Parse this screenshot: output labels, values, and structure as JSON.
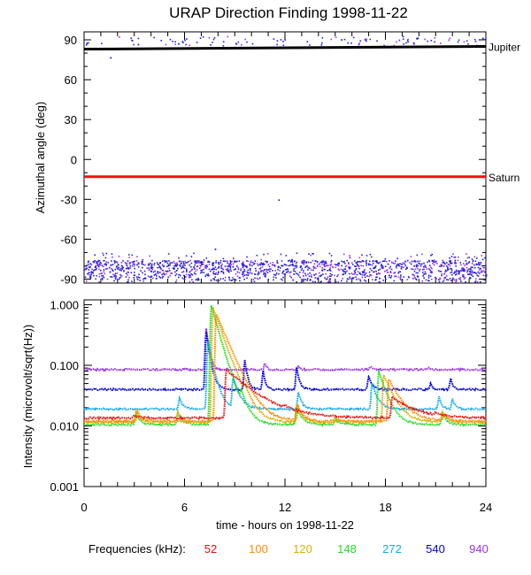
{
  "title": "URAP Direction Finding  1998-11-22",
  "colors": {
    "axes": "#000000",
    "f52": "#ee1111",
    "f100": "#ff8c00",
    "f120": "#d4b000",
    "f148": "#22dd22",
    "f272": "#11aaee",
    "f540": "#0000dd",
    "f940": "#9933ee",
    "scatter_blue": "#2222dd",
    "scatter_purple": "#9933ee"
  },
  "legend": {
    "label": "Frequencies (kHz):",
    "items": [
      {
        "text": "52",
        "color": "#ee1111"
      },
      {
        "text": "100",
        "color": "#ff8c00"
      },
      {
        "text": "120",
        "color": "#d4b000"
      },
      {
        "text": "148",
        "color": "#22dd22"
      },
      {
        "text": "272",
        "color": "#11aaee"
      },
      {
        "text": "540",
        "color": "#0000dd"
      },
      {
        "text": "940",
        "color": "#9933ee"
      }
    ]
  },
  "chart_data": [
    {
      "type": "scatter",
      "title": "URAP Direction Finding  1998-11-22",
      "ylabel": "Azimuthal angle (deg)",
      "xlim": [
        0,
        24
      ],
      "ylim": [
        -93,
        96
      ],
      "yticks": [
        -90,
        -60,
        -30,
        0,
        30,
        60,
        90
      ],
      "xticks": [
        0,
        6,
        12,
        18,
        24
      ],
      "reference_lines": [
        {
          "label": "Jupiter",
          "y": [
            83,
            85
          ],
          "color": "#000000"
        },
        {
          "label": "Saturn",
          "y": [
            -13,
            -13
          ],
          "color": "#ee1111"
        }
      ],
      "scatter_bands": [
        {
          "name": "upper-band",
          "ymin": 86,
          "ymax": 93,
          "density": "sparse",
          "color": "#2222dd"
        },
        {
          "name": "lower-band",
          "ymin": -92,
          "ymax": -70,
          "density": "dense",
          "color": "#2222dd"
        }
      ],
      "outliers": [
        [
          1.55,
          77
        ],
        [
          11.6,
          -30
        ],
        [
          7.8,
          -67
        ],
        [
          3.2,
          87
        ]
      ]
    },
    {
      "type": "line",
      "xlabel": "time - hours on 1998-11-22",
      "ylabel": "Intensity (microvolt/sqrt(Hz))",
      "xlim": [
        0,
        24
      ],
      "ylim": [
        0.001,
        1.2
      ],
      "yscale": "log",
      "yticks": [
        0.001,
        0.01,
        0.1,
        1.0
      ],
      "ytick_labels": [
        "0.001",
        "0.010",
        "0.100",
        "1.000"
      ],
      "xticks": [
        0,
        6,
        12,
        18,
        24
      ],
      "xtick_labels": [
        "0",
        "6",
        "12",
        "18",
        "24"
      ],
      "series": [
        {
          "name": "940",
          "color": "#9933ee",
          "base": 0.085,
          "peaks": [
            [
              7.3,
              0.4,
              0.15
            ],
            [
              10.8,
              0.11,
              0.1
            ],
            [
              12.8,
              0.095,
              0.1
            ],
            [
              17.1,
              0.095,
              0.15
            ],
            [
              20.6,
              0.09,
              0.1
            ]
          ]
        },
        {
          "name": "540",
          "color": "#0000dd",
          "base": 0.04,
          "peaks": [
            [
              7.3,
              0.35,
              0.2
            ],
            [
              9.6,
              0.12,
              0.15
            ],
            [
              10.7,
              0.08,
              0.12
            ],
            [
              12.7,
              0.09,
              0.15
            ],
            [
              17.0,
              0.065,
              0.2
            ],
            [
              20.7,
              0.05,
              0.1
            ],
            [
              21.9,
              0.06,
              0.12
            ]
          ]
        },
        {
          "name": "272",
          "color": "#11aaee",
          "base": 0.019,
          "peaks": [
            [
              5.7,
              0.028,
              0.2
            ],
            [
              7.4,
              0.25,
              0.3
            ],
            [
              8.9,
              0.06,
              0.35
            ],
            [
              12.8,
              0.035,
              0.2
            ],
            [
              17.2,
              0.05,
              0.3
            ],
            [
              21.2,
              0.03,
              0.15
            ],
            [
              22.0,
              0.028,
              0.15
            ]
          ]
        },
        {
          "name": "148",
          "color": "#22dd22",
          "base": 0.0105,
          "peaks": [
            [
              3.1,
              0.016,
              0.25
            ],
            [
              5.6,
              0.016,
              0.25
            ],
            [
              7.6,
              0.95,
              0.45
            ],
            [
              9.4,
              0.022,
              0.3
            ],
            [
              12.7,
              0.02,
              0.3
            ],
            [
              15.0,
              0.013,
              0.3
            ],
            [
              17.6,
              0.08,
              0.45
            ],
            [
              21.4,
              0.016,
              0.25
            ]
          ]
        },
        {
          "name": "120",
          "color": "#d4b000",
          "base": 0.0115,
          "peaks": [
            [
              3.1,
              0.017,
              0.25
            ],
            [
              5.6,
              0.017,
              0.25
            ],
            [
              7.7,
              0.9,
              0.55
            ],
            [
              9.6,
              0.022,
              0.3
            ],
            [
              12.7,
              0.022,
              0.3
            ],
            [
              15.0,
              0.014,
              0.3
            ],
            [
              17.9,
              0.07,
              0.55
            ],
            [
              21.4,
              0.017,
              0.25
            ]
          ]
        },
        {
          "name": "100",
          "color": "#ff8c00",
          "base": 0.012,
          "peaks": [
            [
              3.2,
              0.017,
              0.25
            ],
            [
              7.9,
              0.7,
              0.65
            ],
            [
              12.8,
              0.02,
              0.3
            ],
            [
              18.2,
              0.06,
              0.65
            ],
            [
              21.5,
              0.016,
              0.25
            ]
          ]
        },
        {
          "name": "52",
          "color": "#ee1111",
          "base": 0.0135,
          "peaks": [
            [
              3.0,
              0.015,
              0.3
            ],
            [
              8.5,
              0.085,
              1.5
            ],
            [
              12.0,
              0.015,
              0.4
            ],
            [
              18.4,
              0.03,
              1.2
            ],
            [
              21.0,
              0.015,
              0.3
            ]
          ]
        }
      ]
    }
  ]
}
